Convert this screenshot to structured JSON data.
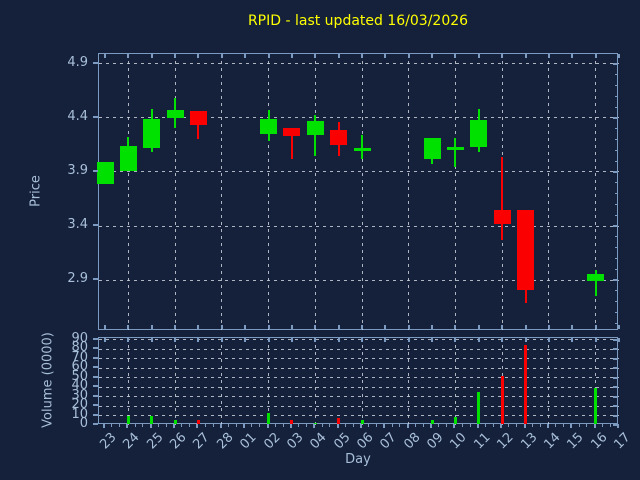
{
  "chart_data": {
    "type": "candlestick_with_volume",
    "title": "RPID - last updated 16/03/2026",
    "xlabel": "Day",
    "ylabel_price": "Price",
    "ylabel_volume": "Volume (0000)",
    "price_ticks": [
      "2.9",
      "3.4",
      "3.9",
      "4.4",
      "4.9"
    ],
    "price_ylim": [
      2.43,
      4.99
    ],
    "volume_ticks": [
      "0",
      "10",
      "20",
      "30",
      "40",
      "50",
      "60",
      "70",
      "80",
      "90"
    ],
    "volume_ylim": [
      0,
      92
    ],
    "grid_on": true,
    "grid_days": [
      "24",
      "26",
      "28",
      "02",
      "04",
      "06",
      "08",
      "10",
      "12",
      "14",
      "16"
    ],
    "days": [
      {
        "label": "23",
        "open": 3.79,
        "high": 3.99,
        "low": 3.79,
        "close": 3.99,
        "volume": 0
      },
      {
        "label": "24",
        "open": 3.91,
        "high": 4.22,
        "low": 3.91,
        "close": 4.14,
        "volume": 10
      },
      {
        "label": "25",
        "open": 4.12,
        "high": 4.48,
        "low": 4.08,
        "close": 4.39,
        "volume": 10
      },
      {
        "label": "26",
        "open": 4.4,
        "high": 4.58,
        "low": 4.31,
        "close": 4.47,
        "volume": 5
      },
      {
        "label": "27",
        "open": 4.46,
        "high": 4.46,
        "low": 4.2,
        "close": 4.33,
        "volume": 5
      },
      {
        "label": "28",
        "open": null,
        "high": null,
        "low": null,
        "close": null,
        "volume": 0
      },
      {
        "label": "01",
        "open": null,
        "high": null,
        "low": null,
        "close": null,
        "volume": 0
      },
      {
        "label": "02",
        "open": 4.25,
        "high": 4.47,
        "low": 4.19,
        "close": 4.39,
        "volume": 13
      },
      {
        "label": "03",
        "open": 4.31,
        "high": 4.31,
        "low": 4.02,
        "close": 4.23,
        "volume": 5
      },
      {
        "label": "04",
        "open": 4.24,
        "high": 4.43,
        "low": 4.05,
        "close": 4.37,
        "volume": 2
      },
      {
        "label": "05",
        "open": 4.29,
        "high": 4.36,
        "low": 4.05,
        "close": 4.15,
        "volume": 7
      },
      {
        "label": "06",
        "open": 4.11,
        "high": 4.24,
        "low": 4.02,
        "close": 4.11,
        "volume": 5
      },
      {
        "label": "07",
        "open": null,
        "high": null,
        "low": null,
        "close": null,
        "volume": 0
      },
      {
        "label": "08",
        "open": null,
        "high": null,
        "low": null,
        "close": null,
        "volume": 0
      },
      {
        "label": "09",
        "open": 4.02,
        "high": 4.21,
        "low": 3.97,
        "close": 4.21,
        "volume": 5
      },
      {
        "label": "10",
        "open": 4.12,
        "high": 4.21,
        "low": 3.95,
        "close": 4.12,
        "volume": 8
      },
      {
        "label": "11",
        "open": 4.13,
        "high": 4.48,
        "low": 4.08,
        "close": 4.38,
        "volume": 35
      },
      {
        "label": "12",
        "open": 3.55,
        "high": 4.04,
        "low": 3.27,
        "close": 3.42,
        "volume": 52
      },
      {
        "label": "13",
        "open": 3.55,
        "high": 3.55,
        "low": 2.69,
        "close": 2.81,
        "volume": 85
      },
      {
        "label": "14",
        "open": null,
        "high": null,
        "low": null,
        "close": null,
        "volume": 0
      },
      {
        "label": "15",
        "open": null,
        "high": null,
        "low": null,
        "close": null,
        "volume": 0
      },
      {
        "label": "16",
        "open": 2.89,
        "high": 2.99,
        "low": 2.75,
        "close": 2.96,
        "volume": 39
      },
      {
        "label": "17",
        "open": null,
        "high": null,
        "low": null,
        "close": null,
        "volume": 0
      }
    ],
    "colors": {
      "up": "#00e100",
      "down": "#fa0000",
      "background": "#15213a",
      "axis": "#7d9bc0",
      "tick_text": "#a8bfda",
      "title_text": "#ffff00",
      "grid": "#c8d0da"
    }
  }
}
